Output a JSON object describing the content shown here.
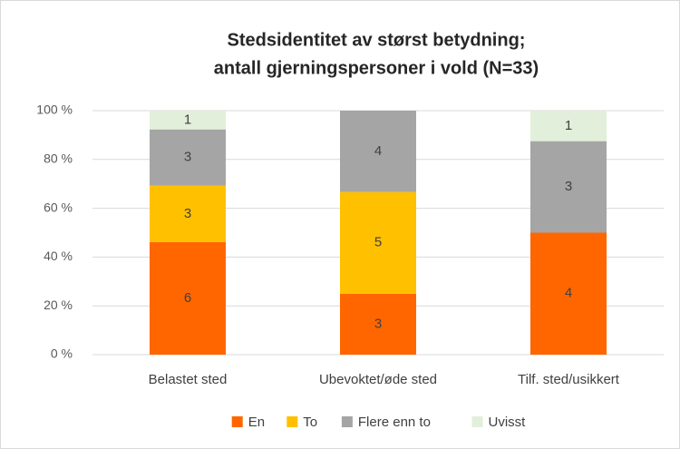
{
  "chart_data": {
    "type": "bar",
    "stacked": "percent",
    "title": [
      "Stedsidentitet av størst betydning;",
      "antall gjerningspersoner i vold (N=33)"
    ],
    "categories": [
      "Belastet sted",
      "Ubevoktet/øde sted",
      "Tilf. sted/usikkert"
    ],
    "series": [
      {
        "name": "En",
        "color": "#ff6600",
        "values": [
          6,
          3,
          4
        ]
      },
      {
        "name": "To",
        "color": "#ffc000",
        "values": [
          3,
          5,
          null
        ]
      },
      {
        "name": "Flere enn to",
        "color": "#a5a5a5",
        "values": [
          3,
          4,
          3
        ]
      },
      {
        "name": "Uvisst",
        "color": "#e2efda",
        "values": [
          1,
          null,
          1
        ]
      }
    ],
    "ylim": [
      0,
      100
    ],
    "yticks": [
      {
        "value": 0,
        "label": "0 %"
      },
      {
        "value": 20,
        "label": "20 %"
      },
      {
        "value": 40,
        "label": "40 %"
      },
      {
        "value": 60,
        "label": "60 %"
      },
      {
        "value": 80,
        "label": "80 %"
      },
      {
        "value": 100,
        "label": "100 %"
      }
    ],
    "grid": true,
    "legend": "bottom"
  }
}
